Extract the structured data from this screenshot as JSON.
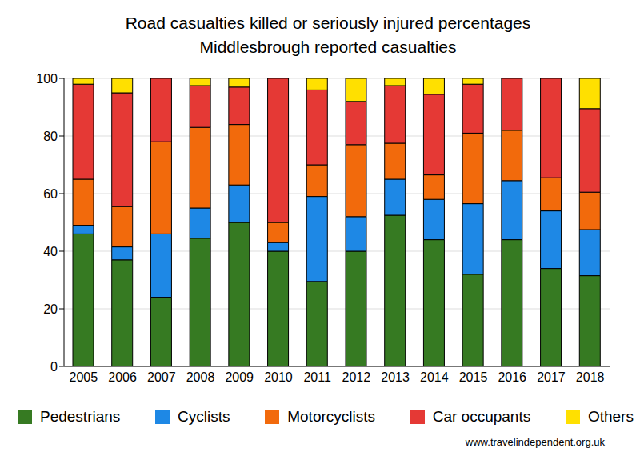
{
  "chart_data": {
    "type": "bar",
    "title": "Road casualties killed or seriously injured percentages",
    "subtitle": "Middlesbrough reported casualties",
    "source": "www.travelindependent.org.uk",
    "categories": [
      "2005",
      "2006",
      "2007",
      "2008",
      "2009",
      "2010",
      "2011",
      "2012",
      "2013",
      "2014",
      "2015",
      "2016",
      "2017",
      "2018"
    ],
    "series": [
      {
        "name": "Pedestrians",
        "color": "#367a22",
        "values": [
          46,
          37,
          24,
          44.5,
          50,
          40,
          29.5,
          40,
          52.5,
          44,
          32,
          44,
          34,
          31.5
        ]
      },
      {
        "name": "Cyclists",
        "color": "#1e88e5",
        "values": [
          3,
          4.5,
          22,
          10.5,
          13,
          3,
          29.5,
          12,
          12.5,
          14,
          24.5,
          20.5,
          20,
          16
        ]
      },
      {
        "name": "Motorcyclists",
        "color": "#f26a0c",
        "values": [
          16,
          14,
          32,
          28,
          21,
          7,
          11,
          25,
          12.5,
          8.5,
          24.5,
          17.5,
          11.5,
          13
        ]
      },
      {
        "name": "Car occupants",
        "color": "#e53935",
        "values": [
          33,
          39.5,
          22,
          14.5,
          13,
          50,
          26,
          15,
          20,
          28,
          17,
          18,
          34.5,
          29
        ]
      },
      {
        "name": "Others",
        "color": "#ffe000",
        "values": [
          2,
          5,
          0,
          2.5,
          3,
          0,
          4,
          8,
          2.5,
          5.5,
          2,
          0,
          0,
          10.5
        ]
      }
    ],
    "ylim": [
      0,
      100
    ],
    "yticks": [
      0,
      20,
      40,
      60,
      80,
      100
    ],
    "stacked": true,
    "grid": true,
    "legend": "bottom"
  }
}
